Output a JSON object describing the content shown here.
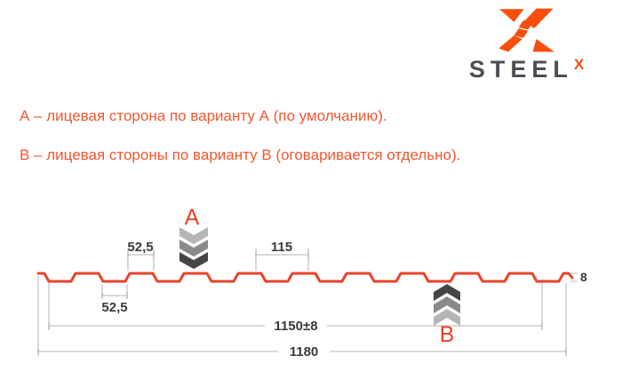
{
  "logo": {
    "brand": "STEEL",
    "superscript": "X",
    "icon": "steelx-x-monogram"
  },
  "notes": {
    "line_a": "А – лицевая сторона по варианту А (по умолчанию).",
    "line_b": "В – лицевая стороны по варианту В (оговаривается отдельно)."
  },
  "diagram": {
    "marker_a": "A",
    "marker_b": "B",
    "dims": {
      "crest_top": "52,5",
      "valley_bottom": "52,5",
      "pitch": "115",
      "height": "8",
      "cover_width": "1150±8",
      "overall_width": "1180"
    }
  },
  "colors": {
    "accent_orange": "#f2572e",
    "logo_orange": "#fa4e0d",
    "profile_red": "#e8432b",
    "steel_gray": "#4b4f55",
    "dim_line_gray": "#b3b3b3",
    "dim_text": "#3a3a3a",
    "chevron_light": "#b5b5b5",
    "chevron_mid": "#8a8a8a",
    "chevron_dark": "#454545"
  }
}
